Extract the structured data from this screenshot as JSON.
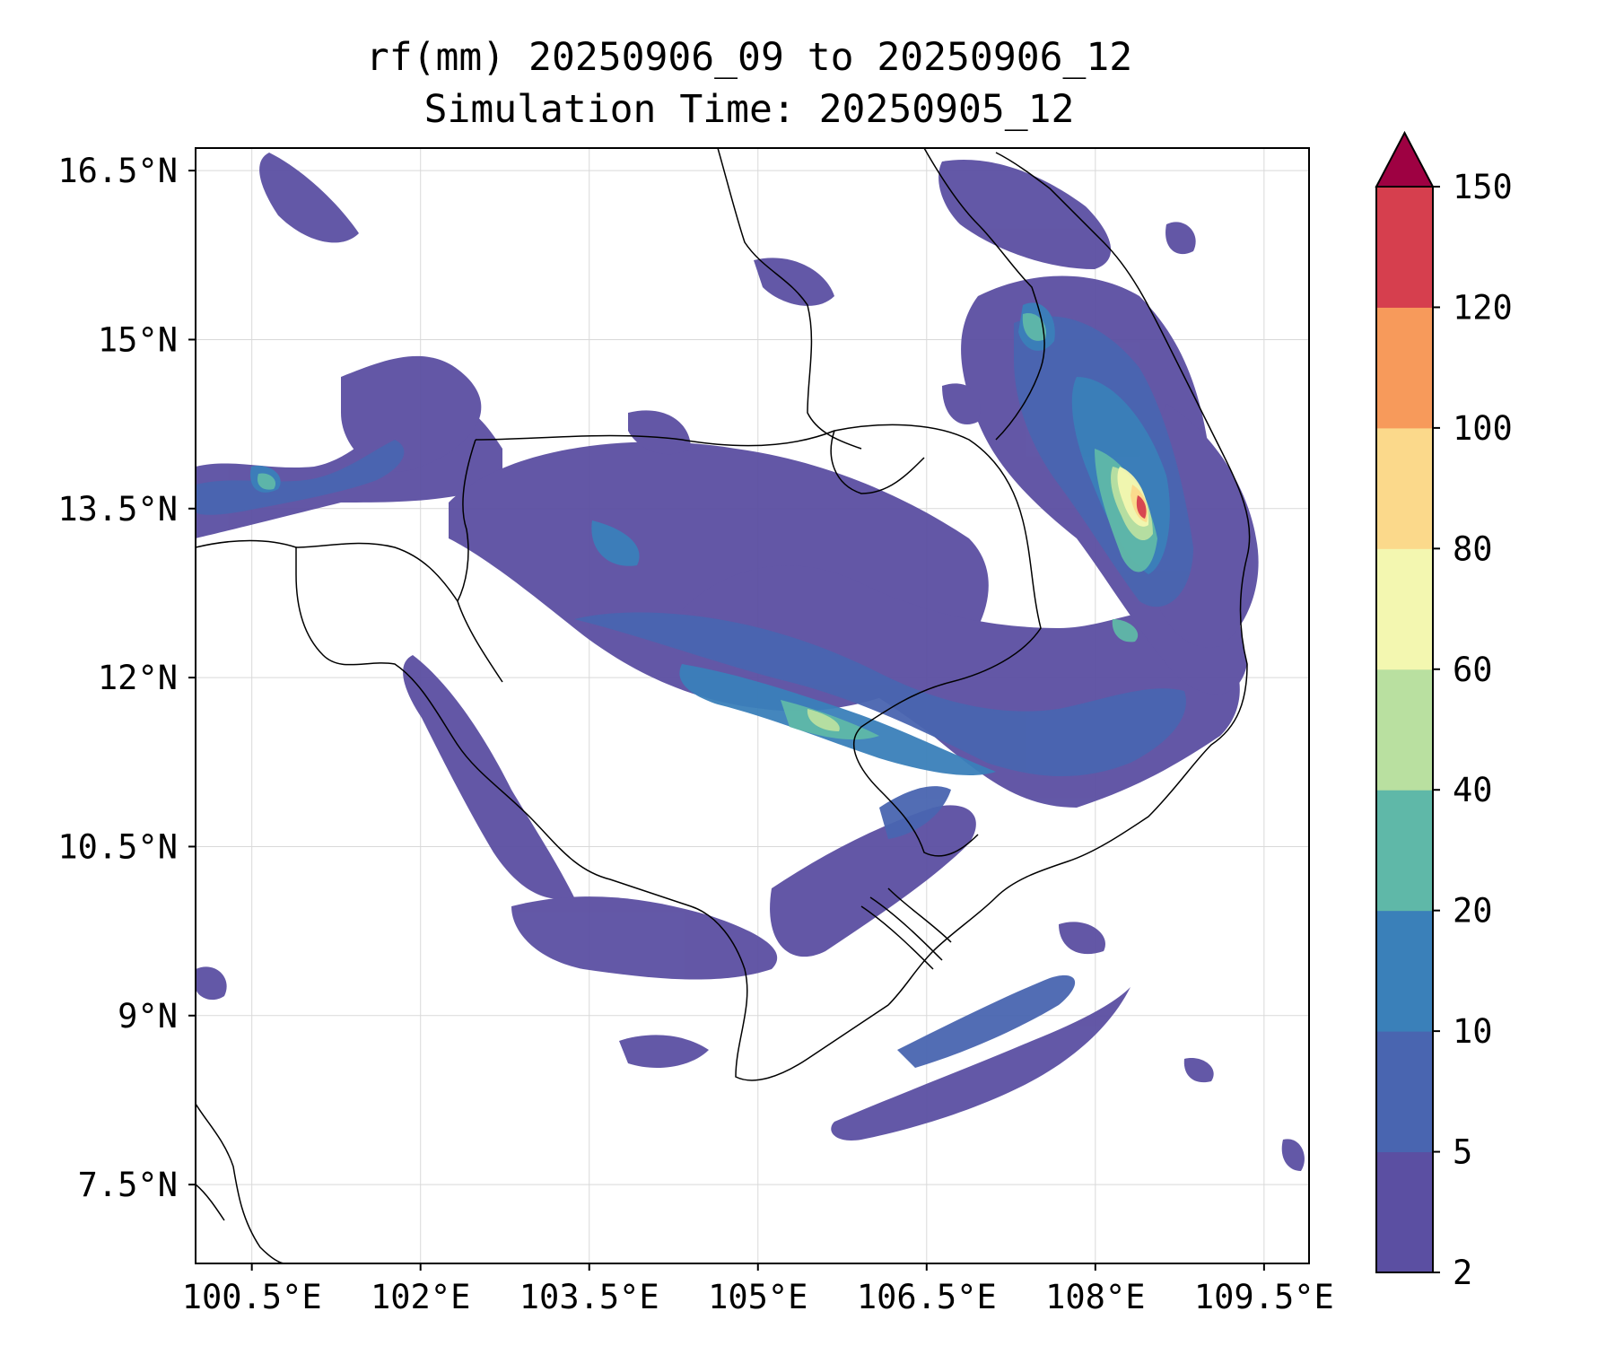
{
  "title": {
    "line1": "rf(mm) 20250906_09 to 20250906_12",
    "line2": "Simulation Time: 20250905_12"
  },
  "chart_data": {
    "type": "heatmap",
    "variable": "rf(mm)",
    "map_extent": {
      "lon": [
        100.0,
        109.9
      ],
      "lat": [
        6.8,
        16.7
      ]
    },
    "x_ticks": [
      {
        "value": 100.5,
        "label": "100.5°E"
      },
      {
        "value": 102.0,
        "label": "102°E"
      },
      {
        "value": 103.5,
        "label": "103.5°E"
      },
      {
        "value": 105.0,
        "label": "105°E"
      },
      {
        "value": 106.5,
        "label": "106.5°E"
      },
      {
        "value": 108.0,
        "label": "108°E"
      },
      {
        "value": 109.5,
        "label": "109.5°E"
      }
    ],
    "y_ticks": [
      {
        "value": 16.5,
        "label": "16.5°N"
      },
      {
        "value": 15.0,
        "label": "15°N"
      },
      {
        "value": 13.5,
        "label": "13.5°N"
      },
      {
        "value": 12.0,
        "label": "12°N"
      },
      {
        "value": 10.5,
        "label": "10.5°N"
      },
      {
        "value": 9.0,
        "label": "9°N"
      },
      {
        "value": 7.5,
        "label": "7.5°N"
      }
    ],
    "grid": true,
    "colorbar": {
      "levels": [
        2,
        5,
        10,
        20,
        40,
        60,
        80,
        100,
        120,
        150
      ],
      "labels": [
        "2",
        "5",
        "10",
        "20",
        "40",
        "60",
        "80",
        "100",
        "120",
        "150"
      ],
      "colors": [
        "#5b4fa2",
        "#4965b0",
        "#3a80b9",
        "#5fb8a8",
        "#b9e0a0",
        "#f3f7b0",
        "#fbd98b",
        "#f79a5b",
        "#d63f4e",
        "#9e0142"
      ],
      "extend": "max"
    }
  },
  "colors": {
    "coastline": "#000000",
    "grid": "#d9d9d9"
  }
}
